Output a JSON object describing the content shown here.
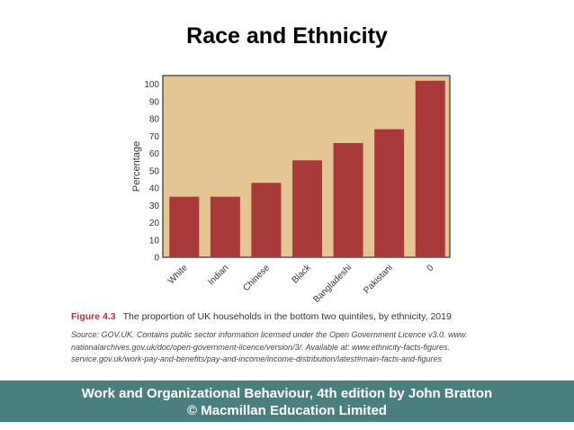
{
  "slide": {
    "title": "Race and Ethnicity",
    "footer_line1": "Work and Organizational Behaviour, 4th edition by John Bratton",
    "footer_line2": "© Macmillan Education Limited"
  },
  "caption": {
    "figure_label": "Figure 4.3",
    "text": "The proportion of UK households in the bottom two quintiles, by ethnicity, 2019",
    "source_lines": [
      "Source: GOV.UK. Contains public sector information licensed under the Open Government Licence v3.0. www.",
      "nationalarchives.gov.uk/doc/open-government-licence/version/3/. Available at: www.ethnicity-facts-figures.",
      "service.gov.uk/work-pay-and-benefits/pay-and-income/income-distribution/latest#main-facts-and-figures"
    ]
  },
  "chart_data": {
    "type": "bar",
    "categories": [
      "White",
      "Indian",
      "Chinese",
      "Black",
      "Bangladeshi",
      "Pakistani",
      "0"
    ],
    "values": [
      35,
      35,
      43,
      56,
      66,
      74,
      102
    ],
    "ylabel": "Percentage",
    "xlabel": "",
    "ylim": [
      0,
      105
    ],
    "yticks": [
      0,
      10,
      20,
      30,
      40,
      50,
      60,
      70,
      80,
      90,
      100
    ],
    "grid": false,
    "colors": {
      "bar": "#a83a3a",
      "plot_background": "#e6c594",
      "frame": "#555555"
    }
  }
}
